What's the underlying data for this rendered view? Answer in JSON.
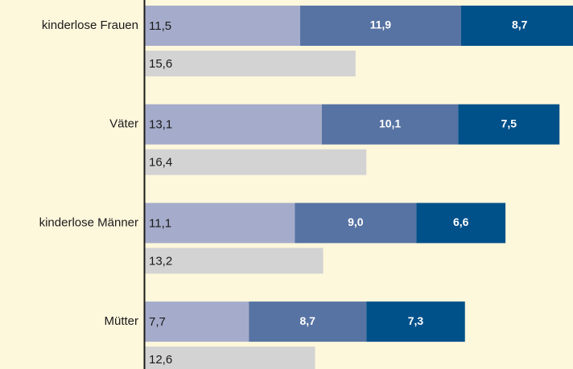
{
  "chart_data": {
    "type": "bar",
    "orientation": "horizontal",
    "stacked": true,
    "categories": [
      "kinderlose Frauen",
      "Väter",
      "kinderlose Männer",
      "Mütter"
    ],
    "xlim": [
      0,
      31.7
    ],
    "series": [
      {
        "color": "#a5accb",
        "values": [
          11.5,
          13.1,
          11.1,
          7.7
        ],
        "value_labels": [
          "11,5",
          "13,1",
          "11,1",
          "7,7"
        ]
      },
      {
        "color": "#5773a3",
        "values": [
          11.9,
          10.1,
          9.0,
          8.7
        ],
        "value_labels": [
          "11,9",
          "10,1",
          "9,0",
          "8,7"
        ]
      },
      {
        "color": "#00508a",
        "values": [
          8.7,
          7.5,
          6.6,
          7.3
        ],
        "value_labels": [
          "8,7",
          "7,5",
          "6,6",
          "7,3"
        ]
      }
    ],
    "comparison": {
      "color": "#d3d3d3",
      "values": [
        15.6,
        16.4,
        13.2,
        12.6
      ],
      "value_labels": [
        "15,6",
        "16,4",
        "13,2",
        "12,6"
      ]
    }
  }
}
